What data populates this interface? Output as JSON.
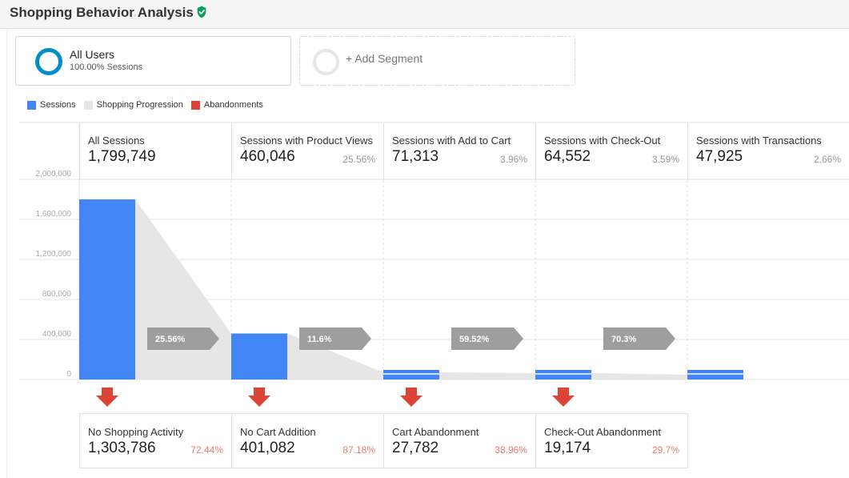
{
  "header": {
    "title": "Shopping Behavior Analysis",
    "verified_icon": "check-shield-icon"
  },
  "segments": {
    "active": {
      "name": "All Users",
      "sub": "100.00% Sessions",
      "color": "#058dc7"
    },
    "add_label": "+ Add Segment"
  },
  "legend": [
    {
      "label": "Sessions",
      "color": "#4285f4"
    },
    {
      "label": "Shopping Progression",
      "color": "#e6e6e6"
    },
    {
      "label": "Abandonments",
      "color": "#db4437"
    }
  ],
  "chart_data": {
    "type": "bar",
    "title": "",
    "categories": [
      "All Sessions",
      "Sessions with Product Views",
      "Sessions with Add to Cart",
      "Sessions with Check-Out",
      "Sessions with Transactions"
    ],
    "values": [
      1799749,
      460046,
      71313,
      64552,
      47925
    ],
    "value_labels": [
      "1,799,749",
      "460,046",
      "71,313",
      "64,552",
      "47,925"
    ],
    "stage_percents": [
      "",
      "25.56%",
      "3.96%",
      "3.59%",
      "2.66%"
    ],
    "progression_percents": [
      "25.56%",
      "11.6%",
      "59.52%",
      "70.3%"
    ],
    "y_ticks": [
      "0",
      "400,000",
      "800,000",
      "1,200,000",
      "1,600,000",
      "2,000,000"
    ],
    "ylim": [
      0,
      2000000
    ],
    "grid": true,
    "abandonments": [
      {
        "name": "No Shopping Activity",
        "value": "1,303,786",
        "percent": "72.44%"
      },
      {
        "name": "No Cart Addition",
        "value": "401,082",
        "percent": "87.18%"
      },
      {
        "name": "Cart Abandonment",
        "value": "27,782",
        "percent": "38.96%"
      },
      {
        "name": "Check-Out Abandonment",
        "value": "19,174",
        "percent": "29.7%"
      }
    ],
    "colors": {
      "sessions": "#4285f4",
      "progression": "#e6e6e6",
      "abandon": "#db4437",
      "chevron": "#9e9e9e"
    }
  }
}
